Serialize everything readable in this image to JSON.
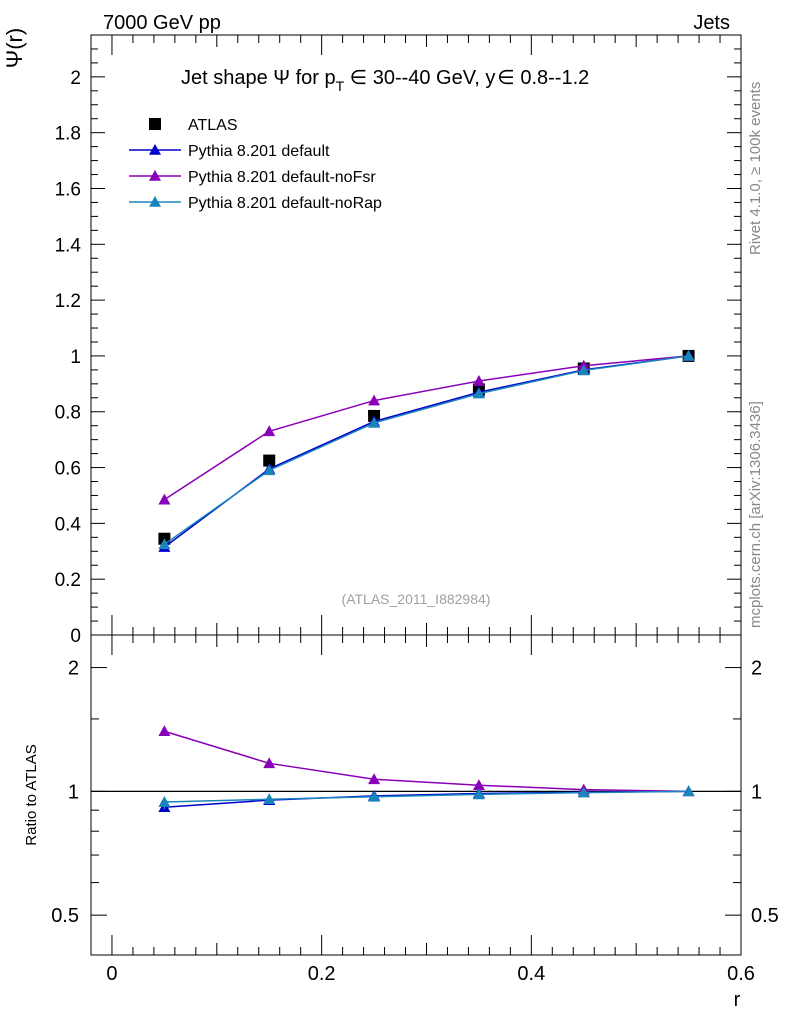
{
  "header": {
    "left": "7000 GeV pp",
    "right": "Jets"
  },
  "side_labels": {
    "rivet": "Rivet 4.1.0, ≥ 100k events",
    "mcplots": "mcplots.cern.ch [arXiv:1306.3436]"
  },
  "main_plot": {
    "title_parts": {
      "prefix": "Jet shape ",
      "psi": "Ψ",
      "for_p": " for p",
      "sub_T": "T",
      "range": " ∈ 30--40 GeV, y",
      "y_range": "∈ 0.8--1.2"
    },
    "watermark": "(ATLAS_2011_I882984)",
    "ylabel": "Ψ(r)"
  },
  "ratio_plot": {
    "ylabel": "Ratio to ATLAS"
  },
  "x_axis_label": "r",
  "colors": {
    "atlas": "#000000",
    "default": "#0000cc",
    "noFsr": "#8a00b8",
    "noRap": "#1a85bd"
  },
  "chart_data": [
    {
      "type": "line",
      "panel": "main",
      "x": [
        0.05,
        0.15,
        0.25,
        0.35,
        0.45,
        0.55
      ],
      "xlim": [
        -0.02,
        0.6
      ],
      "ylim": [
        0,
        2.15
      ],
      "xticks": [
        "0",
        "0.2",
        "0.4",
        "0.6"
      ],
      "yticks": [
        "0",
        "0.2",
        "0.4",
        "0.6",
        "0.8",
        "1",
        "1.2",
        "1.4",
        "1.6",
        "1.8",
        "2"
      ],
      "series": [
        {
          "name": "ATLAS",
          "marker": "square",
          "values": [
            0.345,
            0.625,
            0.785,
            0.88,
            0.955,
            1.0
          ]
        },
        {
          "name": "Pythia 8.201 default",
          "marker": "triangle",
          "values": [
            0.315,
            0.595,
            0.765,
            0.87,
            0.95,
            1.0
          ]
        },
        {
          "name": "Pythia 8.201 default-noFsr",
          "marker": "triangle",
          "values": [
            0.485,
            0.73,
            0.84,
            0.91,
            0.965,
            1.0
          ]
        },
        {
          "name": "Pythia 8.201 default-noRap",
          "marker": "triangle",
          "values": [
            0.325,
            0.59,
            0.76,
            0.865,
            0.948,
            1.0
          ]
        }
      ],
      "legend": "top-left"
    },
    {
      "type": "line",
      "panel": "ratio",
      "x": [
        0.05,
        0.15,
        0.25,
        0.35,
        0.45,
        0.55
      ],
      "ylim": [
        0.4,
        2.4
      ],
      "log_y": true,
      "yticks": [
        "0.5",
        "1",
        "2"
      ],
      "series": [
        {
          "name": "Pythia 8.201 default",
          "values": [
            0.915,
            0.952,
            0.975,
            0.988,
            0.995,
            1.0
          ]
        },
        {
          "name": "Pythia 8.201 default-noFsr",
          "values": [
            1.4,
            1.17,
            1.07,
            1.035,
            1.01,
            1.0
          ]
        },
        {
          "name": "Pythia 8.201 default-noRap",
          "values": [
            0.942,
            0.957,
            0.97,
            0.983,
            0.993,
            1.0
          ]
        }
      ]
    }
  ]
}
